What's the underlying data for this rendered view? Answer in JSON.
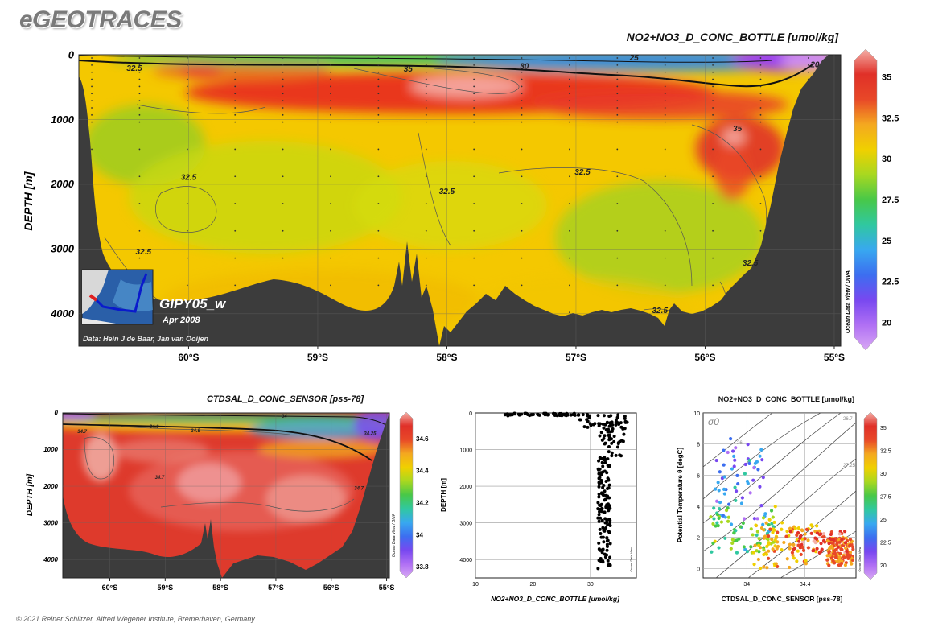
{
  "header": {
    "logo": "eGEOTRACES",
    "copyright": "© 2021 Reiner Schlitzer, Alfred Wegener Institute, Bremerhaven, Germany"
  },
  "chart_data": [
    {
      "type": "heatmap",
      "id": "main-section",
      "title": "NO2+NO3_D_CONC_BOTTLE [umol/kg]",
      "ylabel": "DEPTH [m]",
      "xlim": [
        -60.85,
        -54.95
      ],
      "ylim": [
        4500,
        0
      ],
      "x_ticks": [
        {
          "v": -60,
          "label": "60°S"
        },
        {
          "v": -59,
          "label": "59°S"
        },
        {
          "v": -58,
          "label": "58°S"
        },
        {
          "v": -57,
          "label": "57°S"
        },
        {
          "v": -56,
          "label": "56°S"
        },
        {
          "v": -55,
          "label": "55°S"
        }
      ],
      "y_ticks": [
        {
          "v": 0,
          "label": "0"
        },
        {
          "v": 1000,
          "label": "1000"
        },
        {
          "v": 2000,
          "label": "2000"
        },
        {
          "v": 3000,
          "label": "3000"
        },
        {
          "v": 4000,
          "label": "4000"
        }
      ],
      "colorbar": {
        "min": 18.5,
        "max": 36.5,
        "ticks": [
          "35",
          "32.5",
          "30",
          "27.5",
          "25",
          "22.5",
          "20"
        ],
        "tick_values": [
          35,
          32.5,
          30,
          27.5,
          25,
          22.5,
          20
        ]
      },
      "contour_labels": [
        {
          "label": "25",
          "x": -56.55,
          "y": 90
        },
        {
          "label": "30",
          "x": -57.4,
          "y": 220
        },
        {
          "label": "32.5",
          "x": -60.42,
          "y": 250
        },
        {
          "label": "35",
          "x": -58.3,
          "y": 260
        },
        {
          "label": "35",
          "x": -55.75,
          "y": 1180
        },
        {
          "label": "32.5",
          "x": -56.95,
          "y": 1850
        },
        {
          "label": "32.5",
          "x": -60.0,
          "y": 1930
        },
        {
          "label": "32.5",
          "x": -58.0,
          "y": 2150
        },
        {
          "label": "32.5",
          "x": -60.35,
          "y": 3080
        },
        {
          "label": "32.5",
          "x": -55.65,
          "y": 3260
        },
        {
          "label": "32.5",
          "x": -56.35,
          "y": 3990
        },
        {
          "label": "20",
          "x": -55.15,
          "y": 190
        }
      ],
      "inset": {
        "cruise": "GIPY05_w",
        "date": "Apr 2008",
        "data_credit": "Data: Hein J de Baar, Jan van Ooijen"
      },
      "watermark": "Ocean Data View / DIVA"
    },
    {
      "type": "heatmap",
      "id": "salinity-section",
      "title": "CTDSAL_D_CONC_SENSOR [pss-78]",
      "ylabel": "DEPTH [m]",
      "xlim": [
        -60.85,
        -54.95
      ],
      "ylim": [
        4500,
        0
      ],
      "x_ticks": [
        {
          "v": -60,
          "label": "60°S"
        },
        {
          "v": -59,
          "label": "59°S"
        },
        {
          "v": -58,
          "label": "58°S"
        },
        {
          "v": -57,
          "label": "57°S"
        },
        {
          "v": -56,
          "label": "56°S"
        },
        {
          "v": -55,
          "label": "55°S"
        }
      ],
      "y_ticks": [
        {
          "v": 0,
          "label": "0"
        },
        {
          "v": 1000,
          "label": "1000"
        },
        {
          "v": 2000,
          "label": "2000"
        },
        {
          "v": 3000,
          "label": "3000"
        },
        {
          "v": 4000,
          "label": "4000"
        }
      ],
      "colorbar": {
        "min": 33.72,
        "max": 34.75,
        "ticks": [
          "34.6",
          "34.4",
          "34.2",
          "34",
          "33.8"
        ],
        "tick_values": [
          34.6,
          34.4,
          34.2,
          34.0,
          33.8
        ]
      },
      "contour_labels": [
        {
          "label": "34",
          "x": -56.85,
          "y": 130
        },
        {
          "label": "34.7",
          "x": -60.5,
          "y": 550
        },
        {
          "label": "34.6",
          "x": -59.2,
          "y": 420
        },
        {
          "label": "34.5",
          "x": -58.45,
          "y": 530
        },
        {
          "label": "34.25",
          "x": -55.3,
          "y": 600
        },
        {
          "label": "34.7",
          "x": -59.1,
          "y": 1800
        },
        {
          "label": "34.7",
          "x": -55.5,
          "y": 2100
        }
      ],
      "watermark": "Ocean Data View / DIVA"
    },
    {
      "type": "scatter",
      "id": "profile-plot",
      "xlabel": "NO2+NO3_D_CONC_BOTTLE [umol/kg]",
      "ylabel": "DEPTH [m]",
      "xlim": [
        10,
        38
      ],
      "ylim": [
        4500,
        0
      ],
      "x_ticks": [
        10,
        20,
        30
      ],
      "y_ticks": [
        0,
        1000,
        2000,
        3000,
        4000
      ],
      "watermark": "Ocean Data View"
    },
    {
      "type": "scatter",
      "id": "ts-plot",
      "title": "NO2+NO3_D_CONC_BOTTLE [umol/kg]",
      "xlabel": "CTDSAL_D_CONC_SENSOR [pss-78]",
      "ylabel": "Potential Temperature θ [degC]",
      "xlim": [
        33.7,
        34.75
      ],
      "ylim": [
        -0.6,
        10
      ],
      "x_ticks": [
        {
          "v": 34,
          "label": "34"
        },
        {
          "v": 34.4,
          "label": "34.4"
        }
      ],
      "y_ticks": [
        0,
        2,
        4,
        6,
        8,
        10
      ],
      "density_label": "σ0",
      "isopycnal_labels": [
        "26.7",
        "27.25",
        "26"
      ],
      "colorbar": {
        "min": 18.5,
        "max": 36.5,
        "ticks": [
          "35",
          "32.5",
          "30",
          "27.5",
          "25",
          "22.5",
          "20"
        ],
        "tick_values": [
          35,
          32.5,
          30,
          27.5,
          25,
          22.5,
          20
        ]
      },
      "watermark": "Ocean Data View"
    }
  ]
}
